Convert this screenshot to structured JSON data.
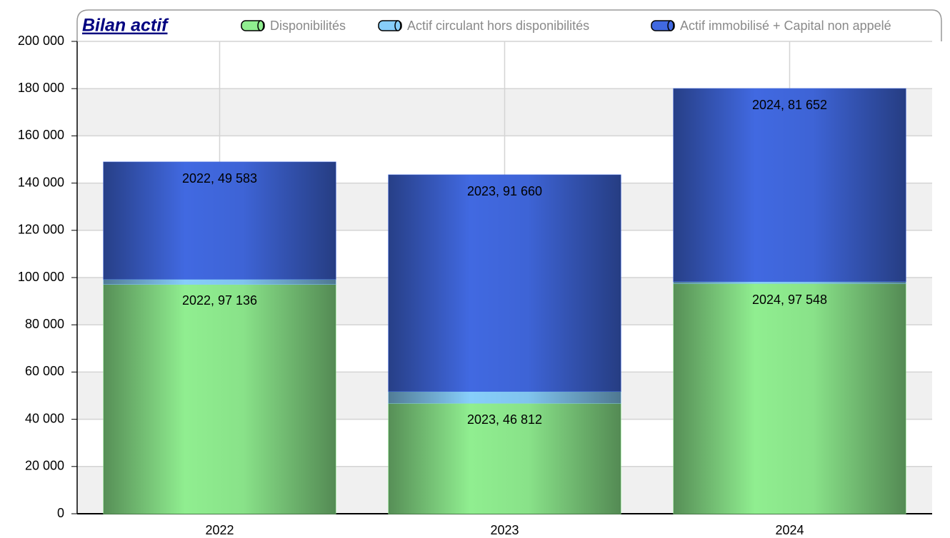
{
  "chart_data": {
    "type": "bar",
    "stacked": true,
    "title": "Bilan actif",
    "categories": [
      "2022",
      "2023",
      "2024"
    ],
    "series": [
      {
        "name": "Disponibilités",
        "color": "#90ee90",
        "values": [
          97136,
          46812,
          97548
        ],
        "value_labels": [
          "2022, 97 136",
          "2023, 46 812",
          "2024, 97 548"
        ]
      },
      {
        "name": "Actif circulant hors disponibilités",
        "color": "#87cefa",
        "values": [
          2200,
          5000,
          800
        ]
      },
      {
        "name": "Actif immobilisé + Capital non appelé",
        "color": "#4169e1",
        "values": [
          49583,
          91660,
          81652
        ],
        "value_labels": [
          "2022, 49 583",
          "2023, 91 660",
          "2024, 81 652"
        ]
      }
    ],
    "ylim": [
      0,
      200000
    ],
    "yticks": [
      0,
      {
        "value": 20000,
        "label": "20 000"
      },
      {
        "value": 40000,
        "label": "40 000"
      },
      {
        "value": 60000,
        "label": "60 000"
      },
      {
        "value": 80000,
        "label": "80 000"
      },
      {
        "value": 100000,
        "label": "100 000"
      },
      {
        "value": 120000,
        "label": "120 000"
      },
      {
        "value": 140000,
        "label": "140 000"
      },
      {
        "value": 160000,
        "label": "160 000"
      },
      {
        "value": 180000,
        "label": "180 000"
      },
      {
        "value": 200000,
        "label": "200 000"
      }
    ],
    "grid": true,
    "legend": "top"
  }
}
